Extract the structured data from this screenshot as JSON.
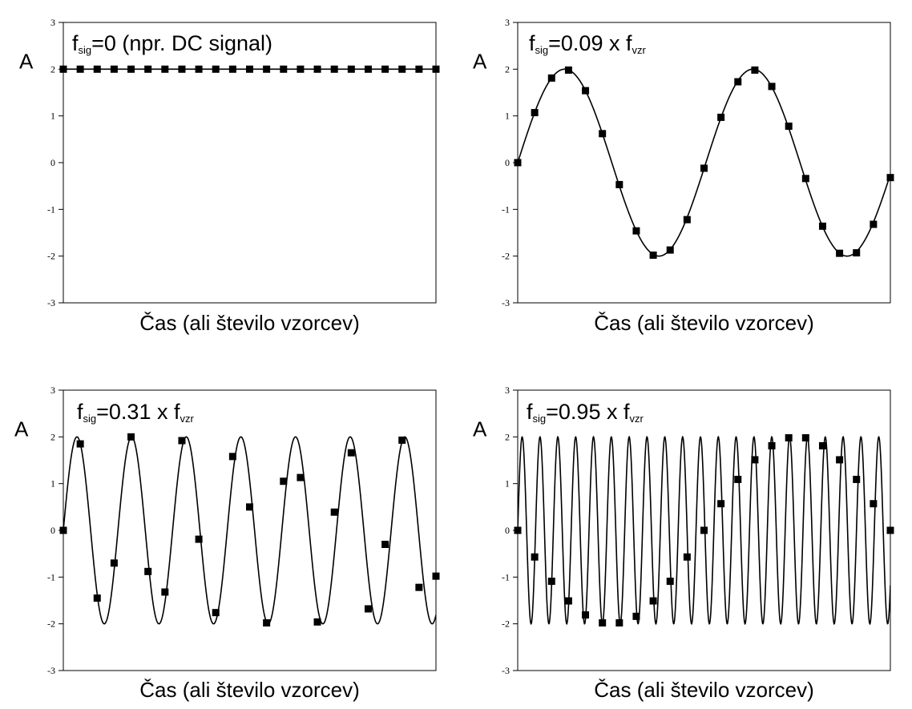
{
  "figure": {
    "background": "#ffffff",
    "line_color": "#000000",
    "marker_color": "#000000"
  },
  "chart_data": [
    {
      "type": "line",
      "title": {
        "prefix": "f",
        "sub": "sig",
        "text": "=0 (npr. DC signal)",
        "sub2": ""
      },
      "ylabel": "A",
      "xlabel": "Čas (ali število vzorcev)",
      "ylim": [
        -3,
        3
      ],
      "yticks": [
        "3",
        "2",
        "1",
        "0",
        "-1",
        "-2",
        "-3"
      ],
      "ytick_values": [
        3,
        2,
        1,
        0,
        -1,
        -2,
        -3
      ],
      "grid": false,
      "x_range": [
        0,
        22
      ],
      "series": [
        {
          "kind": "continuous",
          "function": "sin",
          "amplitude": 2,
          "frequency": 0,
          "offset": 2
        },
        {
          "kind": "samples",
          "marker": "square",
          "x": [
            0,
            1,
            2,
            3,
            4,
            5,
            6,
            7,
            8,
            9,
            10,
            11,
            12,
            13,
            14,
            15,
            16,
            17,
            18,
            19,
            20,
            21,
            22
          ],
          "y": [
            2,
            2,
            2,
            2,
            2,
            2,
            2,
            2,
            2,
            2,
            2,
            2,
            2,
            2,
            2,
            2,
            2,
            2,
            2,
            2,
            2,
            2,
            2
          ]
        }
      ]
    },
    {
      "type": "line",
      "title": {
        "prefix": "f",
        "sub": "sig",
        "text": "=0.09 x f",
        "sub2": "vzr"
      },
      "ylabel": "A",
      "xlabel": "Čas (ali število vzorcev)",
      "ylim": [
        -3,
        3
      ],
      "yticks": [
        "3",
        "2",
        "1",
        "0",
        "-1",
        "-2",
        "-3"
      ],
      "ytick_values": [
        3,
        2,
        1,
        0,
        -1,
        -2,
        -3
      ],
      "grid": false,
      "x_range": [
        0,
        22
      ],
      "series": [
        {
          "kind": "continuous",
          "function": "sin",
          "amplitude": 2,
          "frequency": 0.09,
          "offset": 0
        },
        {
          "kind": "samples",
          "marker": "square",
          "x": [
            0,
            1,
            2,
            3,
            4,
            5,
            6,
            7,
            8,
            9,
            10,
            11,
            12,
            13,
            14,
            15,
            16,
            17,
            18,
            19,
            20,
            21,
            22
          ],
          "y": [
            0,
            1.07,
            1.81,
            1.98,
            1.54,
            0.62,
            -0.47,
            -1.46,
            -1.98,
            -1.87,
            -1.22,
            -0.12,
            0.97,
            1.73,
            1.98,
            1.63,
            0.78,
            -0.34,
            -1.36,
            -1.94,
            -1.93,
            -1.32,
            -0.32
          ]
        }
      ]
    },
    {
      "type": "line",
      "title": {
        "prefix": "f",
        "sub": "sig",
        "text": "=0.31 x f",
        "sub2": "vzr"
      },
      "ylabel": "A",
      "xlabel": "Čas (ali število vzorcev)",
      "ylim": [
        -3,
        3
      ],
      "yticks": [
        "3",
        "2",
        "1",
        "0",
        "-1",
        "-2",
        "-3"
      ],
      "ytick_values": [
        3,
        2,
        1,
        0,
        -1,
        -2,
        -3
      ],
      "grid": false,
      "x_range": [
        0,
        22
      ],
      "series": [
        {
          "kind": "continuous",
          "function": "sin",
          "amplitude": 2,
          "frequency": 0.31,
          "offset": 0
        },
        {
          "kind": "samples",
          "marker": "square",
          "x": [
            0,
            1,
            2,
            3,
            4,
            5,
            6,
            7,
            8,
            9,
            10,
            11,
            12,
            13,
            14,
            15,
            16,
            17,
            18,
            19,
            20,
            21,
            22
          ],
          "y": [
            0,
            1.85,
            -1.45,
            -0.7,
            2.0,
            -0.88,
            -1.32,
            1.92,
            -0.19,
            -1.76,
            1.58,
            0.5,
            -1.98,
            1.05,
            1.13,
            -1.96,
            0.39,
            1.66,
            -1.68,
            -0.3,
            1.93,
            -1.22,
            -0.98
          ]
        }
      ]
    },
    {
      "type": "line",
      "title": {
        "prefix": "f",
        "sub": "sig",
        "text": "=0.95 x f",
        "sub2": "vzr"
      },
      "ylabel": "A",
      "xlabel": "Čas (ali število vzorcev)",
      "ylim": [
        -3,
        3
      ],
      "yticks": [
        "3",
        "2",
        "1",
        "0",
        "-1",
        "-2",
        "-3"
      ],
      "ytick_values": [
        3,
        2,
        1,
        0,
        -1,
        -2,
        -3
      ],
      "grid": false,
      "x_range": [
        0,
        22
      ],
      "series": [
        {
          "kind": "continuous",
          "function": "sin",
          "amplitude": 2,
          "frequency": 0.95,
          "offset": 0
        },
        {
          "kind": "samples",
          "marker": "square",
          "x": [
            0,
            1,
            2,
            3,
            4,
            5,
            6,
            7,
            8,
            9,
            10,
            11,
            12,
            13,
            14,
            15,
            16,
            17,
            18,
            19,
            20,
            21,
            22
          ],
          "y": [
            0,
            -0.57,
            -1.09,
            -1.51,
            -1.81,
            -1.98,
            -1.98,
            -1.84,
            -1.51,
            -1.09,
            -0.57,
            0.0,
            0.57,
            1.09,
            1.51,
            1.81,
            1.98,
            1.98,
            1.81,
            1.51,
            1.09,
            0.57,
            0.0
          ]
        }
      ]
    }
  ]
}
